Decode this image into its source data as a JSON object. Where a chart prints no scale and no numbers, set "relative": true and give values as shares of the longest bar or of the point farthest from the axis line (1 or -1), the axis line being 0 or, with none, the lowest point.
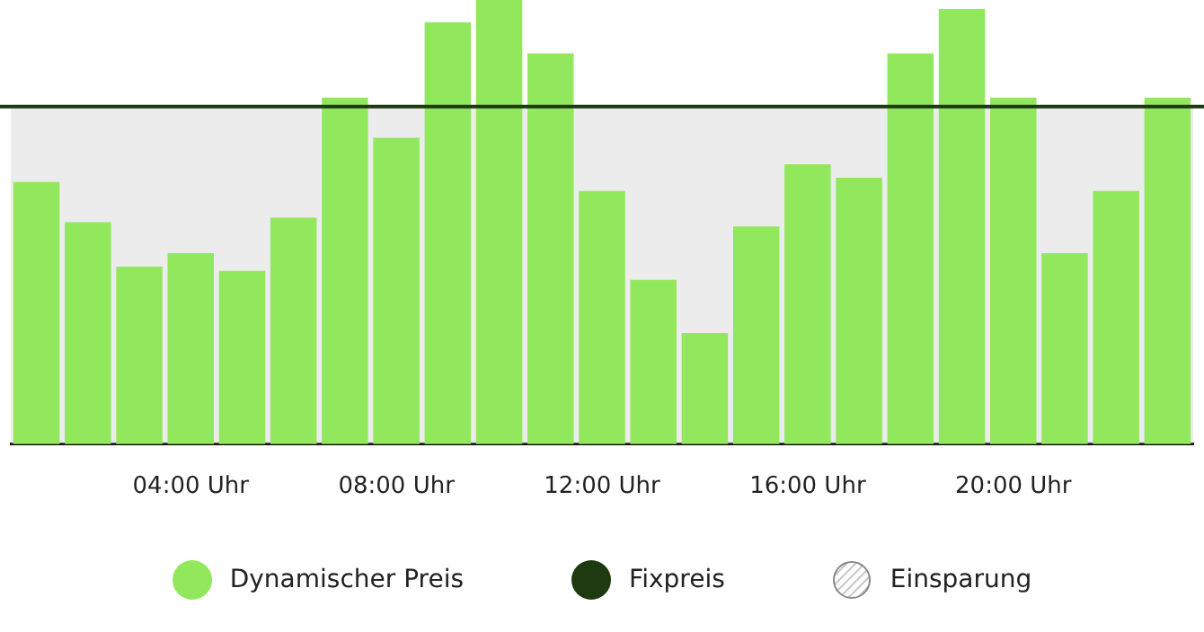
{
  "chart_data": {
    "type": "bar",
    "relative": true,
    "categories": [
      null,
      null,
      null,
      "04:00 Uhr",
      null,
      null,
      null,
      "08:00 Uhr",
      null,
      null,
      null,
      "12:00 Uhr",
      null,
      null,
      null,
      "16:00 Uhr",
      null,
      null,
      null,
      "20:00 Uhr",
      null,
      null,
      null
    ],
    "series": [
      {
        "name": "Dynamischer Preis",
        "color": "#92e85c",
        "values": [
          0.59,
          0.5,
          0.4,
          0.43,
          0.39,
          0.51,
          0.78,
          0.69,
          0.95,
          1,
          0.88,
          0.57,
          0.37,
          0.25,
          0.49,
          0.63,
          0.6,
          0.88,
          0.98,
          0.78,
          0.43,
          0.57,
          0.78
        ]
      }
    ],
    "ref_lines": [
      {
        "axis": "y",
        "value": 0.76,
        "label": "Fixpreis",
        "color": "#1e3a10"
      }
    ],
    "bands": [
      {
        "axis": "y",
        "from": 0,
        "to": 0.76,
        "label": "Einsparung",
        "color": "#c8c8c8"
      }
    ],
    "grid": false,
    "legend": "bottom"
  }
}
